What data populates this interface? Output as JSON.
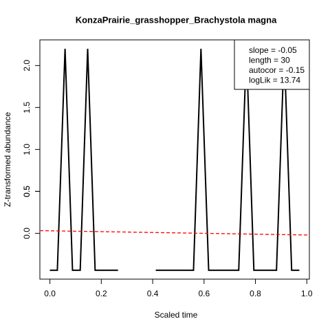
{
  "chart_data": {
    "type": "line",
    "title": "KonzaPrairie_grasshopper_Brachystola magna",
    "x_label": "Scaled time",
    "y_label": "Z-transformed abundance",
    "x": [
      0,
      0.029,
      0.059,
      0.088,
      0.118,
      0.147,
      0.176,
      0.206,
      0.235,
      0.265,
      0.294,
      0.324,
      0.353,
      0.382,
      0.412,
      0.441,
      0.471,
      0.5,
      0.529,
      0.559,
      0.588,
      0.618,
      0.647,
      0.676,
      0.706,
      0.735,
      0.765,
      0.794,
      0.824,
      0.853,
      0.882,
      0.912,
      0.941,
      0.971
    ],
    "series": [
      {
        "color": "#000000",
        "values": [
          -0.44,
          -0.44,
          2.2,
          -0.44,
          -0.44,
          2.2,
          -0.44,
          -0.44,
          -0.44,
          -0.44,
          null,
          null,
          null,
          null,
          -0.44,
          -0.44,
          -0.44,
          -0.44,
          -0.44,
          -0.44,
          2.2,
          -0.44,
          -0.44,
          -0.44,
          -0.44,
          -0.44,
          2.2,
          -0.44,
          -0.44,
          -0.44,
          -0.44,
          2.2,
          -0.44,
          -0.44
        ]
      }
    ],
    "trend": {
      "intercept": 0.03,
      "slope": -0.05,
      "color": "#ff0000"
    },
    "legend": [
      "slope = -0.05",
      "length = 30",
      "autocor = -0.15",
      "logLik = 13.74"
    ],
    "xlim": [
      -0.039,
      1.01
    ],
    "ylim": [
      -0.546,
      2.306
    ],
    "xticks": [
      {
        "value": 0,
        "label": "0.0"
      },
      0.2,
      0.4,
      0.6,
      0.8,
      {
        "value": 1,
        "label": "1.0"
      }
    ],
    "yticks": [
      0.5,
      {
        "value": 0,
        "label": "0.0"
      },
      0.5,
      {
        "value": 1,
        "label": "1.0"
      },
      1.5,
      {
        "value": 2,
        "label": "2.0"
      }
    ]
  }
}
